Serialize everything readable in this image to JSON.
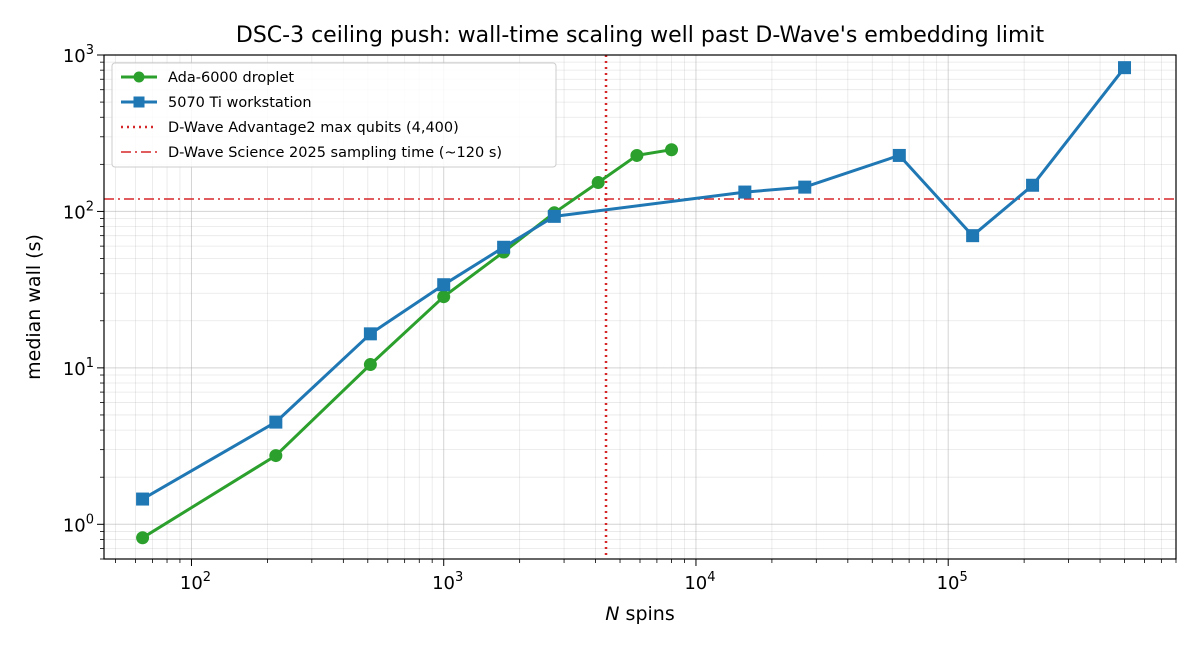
{
  "chart_data": {
    "type": "line",
    "title": "DSC-3 ceiling push: wall-time scaling well past D-Wave's embedding limit",
    "xlabel": {
      "italic": "N",
      "rest": " spins"
    },
    "ylabel": "median wall (s)",
    "xscale": "log",
    "yscale": "log",
    "xlim": [
      45,
      800000
    ],
    "ylim": [
      0.6,
      1000
    ],
    "x_ticks": [
      {
        "value": 100,
        "base": "10",
        "exp": "2"
      },
      {
        "value": 1000,
        "base": "10",
        "exp": "3"
      },
      {
        "value": 10000,
        "base": "10",
        "exp": "4"
      },
      {
        "value": 100000,
        "base": "10",
        "exp": "5"
      }
    ],
    "y_ticks": [
      {
        "value": 1,
        "base": "10",
        "exp": "0"
      },
      {
        "value": 10,
        "base": "10",
        "exp": "1"
      },
      {
        "value": 100,
        "base": "10",
        "exp": "2"
      },
      {
        "value": 1000,
        "base": "10",
        "exp": "3"
      }
    ],
    "grid": true,
    "legend_position": "upper-left",
    "series": [
      {
        "name": "Ada-6000 droplet",
        "color": "#2ca02c",
        "marker": "circle",
        "points": [
          [
            64,
            0.82
          ],
          [
            216,
            2.75
          ],
          [
            512,
            10.5
          ],
          [
            1000,
            28.5
          ],
          [
            1728,
            55
          ],
          [
            2744,
            98
          ],
          [
            4096,
            153
          ],
          [
            5832,
            228
          ],
          [
            8000,
            248
          ]
        ]
      },
      {
        "name": "5070 Ti workstation",
        "color": "#1f77b4",
        "marker": "square",
        "points": [
          [
            64,
            1.45
          ],
          [
            216,
            4.5
          ],
          [
            512,
            16.5
          ],
          [
            1000,
            34
          ],
          [
            1728,
            59
          ],
          [
            2744,
            93
          ],
          [
            15625,
            133
          ],
          [
            27000,
            143
          ],
          [
            64000,
            228
          ],
          [
            125000,
            70
          ],
          [
            216000,
            147
          ],
          [
            500000,
            830
          ]
        ]
      }
    ],
    "reference_lines": [
      {
        "name": "D-Wave Advantage2 max qubits (4,400)",
        "orientation": "vertical",
        "value": 4400,
        "color": "#d62728",
        "style": "dotted"
      },
      {
        "name": "D-Wave Science 2025 sampling time (~120 s)",
        "orientation": "horizontal",
        "value": 120,
        "color": "#d62728",
        "style": "dashdot"
      }
    ]
  }
}
